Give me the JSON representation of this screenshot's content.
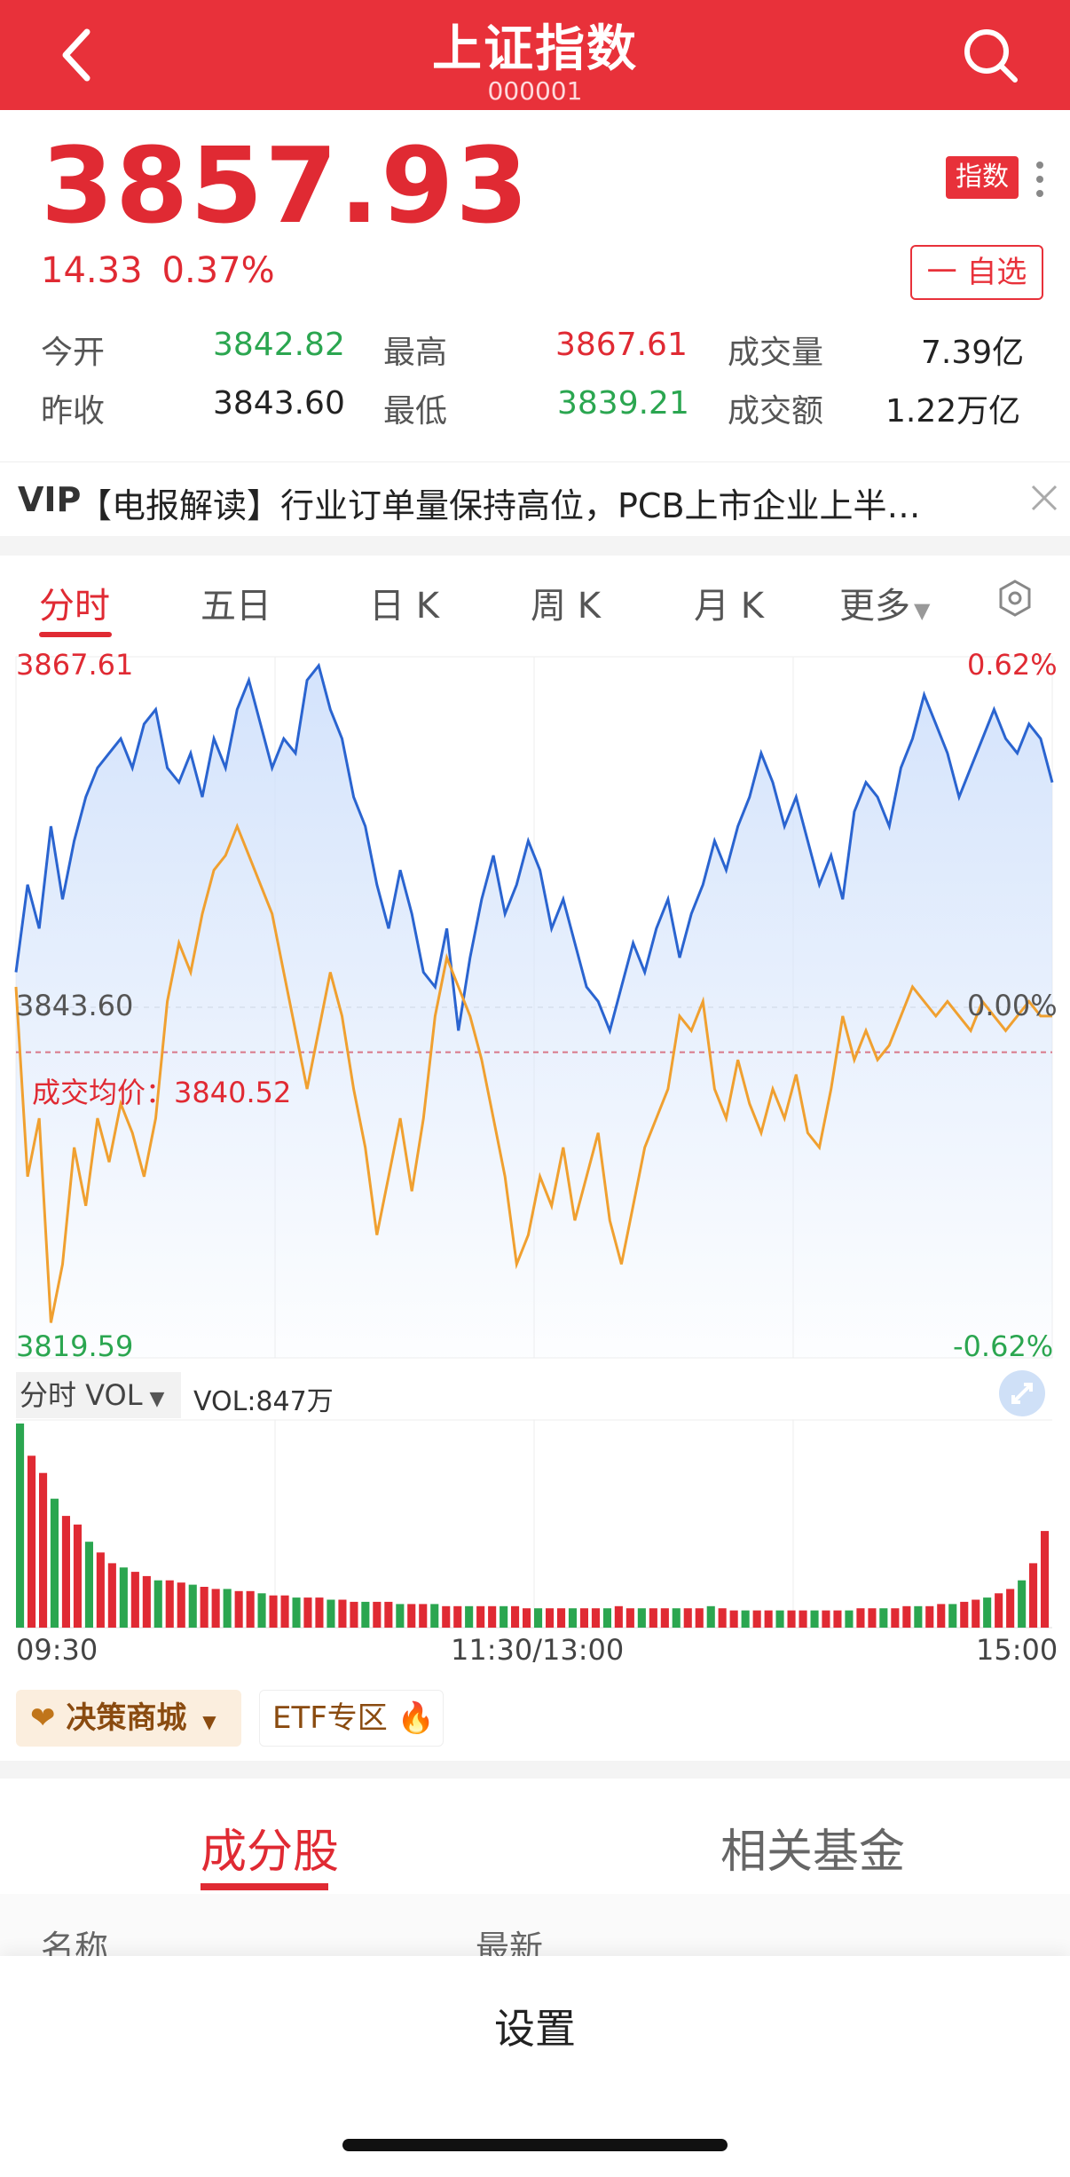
{
  "header": {
    "title": "上证指数",
    "code": "000001",
    "back_icon": "chevron-left-icon",
    "search_icon": "search-icon",
    "bg_color": "#e8313a"
  },
  "quote": {
    "price": "3857.93",
    "change": "14.33",
    "change_pct": "0.37%",
    "badge": "指数",
    "fav_label": "一 自选"
  },
  "stats": {
    "open_label": "今开",
    "open": "3842.82",
    "high_label": "最高",
    "high": "3867.61",
    "volume_label": "成交量",
    "volume": "7.39亿",
    "prev_close_label": "昨收",
    "prev_close": "3843.60",
    "low_label": "最低",
    "low": "3839.21",
    "amount_label": "成交额",
    "amount": "1.22万亿"
  },
  "news": {
    "vip": "VIP",
    "text": "【电报解读】行业订单量保持高位，PCB上市企业上半…"
  },
  "chart_tabs": [
    "分时",
    "五日",
    "日 K",
    "周 K",
    "月 K",
    "更多"
  ],
  "chart_data": {
    "type": "line",
    "y_top": "3867.61",
    "y_mid": "3843.60",
    "y_bottom": "3819.59",
    "pct_top": "0.62%",
    "pct_mid": "0.00%",
    "pct_bottom": "-0.62%",
    "avg_label": "成交均价：",
    "avg_value": "3840.52",
    "ylim": [
      3819.59,
      3867.61
    ],
    "x_ticks": [
      "09:30",
      "11:30/13:00",
      "15:00"
    ],
    "series": [
      {
        "values": [
          3846,
          3852,
          3849,
          3856,
          3851,
          3855,
          3858,
          3860,
          3861,
          3862,
          3860,
          3863,
          3864,
          3860,
          3859,
          3861,
          3858,
          3862,
          3860,
          3864,
          3866,
          3863,
          3860,
          3862,
          3861,
          3866,
          3867,
          3864,
          3862,
          3858,
          3856,
          3852,
          3849,
          3853,
          3850,
          3846,
          3845,
          3849,
          3842,
          3847,
          3851,
          3854,
          3850,
          3852,
          3855,
          3853,
          3849,
          3851,
          3848,
          3845,
          3844,
          3842,
          3845,
          3848,
          3846,
          3849,
          3851,
          3847,
          3850,
          3852,
          3855,
          3853,
          3856,
          3858,
          3861,
          3859,
          3856,
          3858,
          3855,
          3852,
          3854,
          3851,
          3857,
          3859,
          3858,
          3856,
          3860,
          3862,
          3865,
          3863,
          3861,
          3858,
          3860,
          3862,
          3864,
          3862,
          3861,
          3863,
          3862,
          3859
        ]
      },
      {
        "values": [
          3845,
          3832,
          3836,
          3822,
          3826,
          3834,
          3830,
          3836,
          3833,
          3837,
          3835,
          3832,
          3836,
          3844,
          3848,
          3846,
          3850,
          3853,
          3854,
          3856,
          3854,
          3852,
          3850,
          3846,
          3842,
          3838,
          3842,
          3846,
          3843,
          3838,
          3834,
          3828,
          3832,
          3836,
          3831,
          3836,
          3843,
          3847,
          3845,
          3843,
          3840,
          3836,
          3832,
          3826,
          3828,
          3832,
          3830,
          3834,
          3829,
          3832,
          3835,
          3829,
          3826,
          3830,
          3834,
          3836,
          3838,
          3843,
          3842,
          3844,
          3838,
          3836,
          3840,
          3837,
          3835,
          3838,
          3836,
          3839,
          3835,
          3834,
          3838,
          3843,
          3840,
          3842,
          3840,
          3841,
          3843,
          3845,
          3844,
          3843,
          3844,
          3843,
          3842,
          3844,
          3843,
          3842,
          3843,
          3844,
          3843,
          3843
        ]
      }
    ],
    "line_color": "#2a64d0",
    "avg_color": "#f0a030"
  },
  "volume": {
    "selector": "分时 VOL",
    "value": "VOL:847万",
    "bars": [
      95,
      80,
      72,
      60,
      52,
      48,
      40,
      35,
      30,
      28,
      26,
      24,
      22,
      22,
      21,
      20,
      19,
      18,
      18,
      17,
      17,
      16,
      15,
      15,
      14,
      14,
      14,
      13,
      13,
      12,
      12,
      12,
      12,
      11,
      11,
      11,
      11,
      10,
      10,
      10,
      10,
      10,
      10,
      10,
      9,
      9,
      9,
      9,
      9,
      9,
      9,
      9,
      10,
      9,
      9,
      9,
      9,
      9,
      9,
      9,
      10,
      9,
      8,
      8,
      8,
      8,
      8,
      8,
      8,
      8,
      8,
      8,
      8,
      9,
      9,
      9,
      9,
      10,
      10,
      10,
      11,
      11,
      12,
      13,
      14,
      16,
      18,
      22,
      30,
      45
    ],
    "bar_colors": [
      "#e02a33",
      "#2ba650"
    ]
  },
  "shortcuts": {
    "decision": "决策商城",
    "etf": "ETF专区"
  },
  "bottom_tabs": {
    "components": "成分股",
    "funds": "相关基金",
    "col_name": "名称",
    "col_latest": "最新"
  },
  "sheet": {
    "title": "设置"
  }
}
